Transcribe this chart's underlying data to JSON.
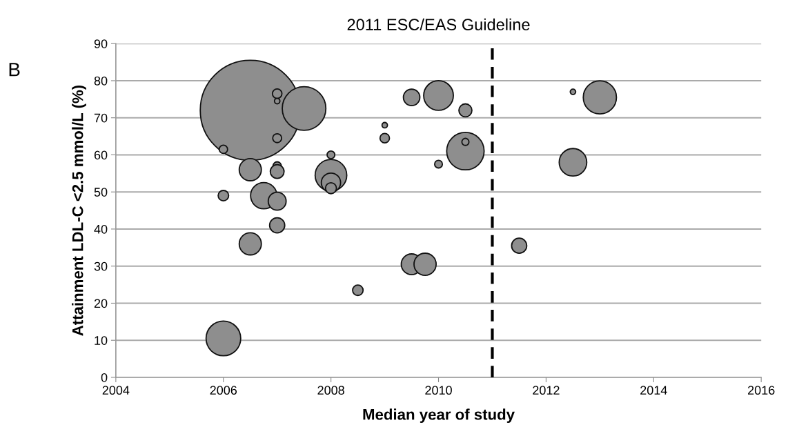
{
  "chart_data": {
    "type": "bubble",
    "title": "2011 ESC/EAS Guideline",
    "xlabel": "Median year of study",
    "ylabel": "Attainment LDL-C <2.5 mmol/L (%)",
    "annotations": [
      "B"
    ],
    "x": [
      2006.5,
      2007.5,
      2007,
      2007,
      2007,
      2006,
      2006.5,
      2007,
      2007,
      2008,
      2008,
      2008,
      2008,
      2006,
      2006.75,
      2007,
      2007,
      2006.5,
      2006,
      2008.5,
      2009,
      2009,
      2009.5,
      2010,
      2010.5,
      2010.5,
      2010.5,
      2010,
      2009.5,
      2009.75,
      2011.5,
      2012.5,
      2013,
      2012.5
    ],
    "values": [
      72,
      72.5,
      76.5,
      74.5,
      64.5,
      61.5,
      56,
      57,
      55.5,
      60,
      54.5,
      52.5,
      51,
      49,
      49,
      47.5,
      41,
      36,
      10.5,
      23.5,
      68,
      64.5,
      75.5,
      76,
      72,
      61,
      63.5,
      57.5,
      30.5,
      30.5,
      35.5,
      77,
      75.5,
      58
    ],
    "sizes": [
      1,
      0.19,
      0.009,
      0.003,
      0.008,
      0.007,
      0.049,
      0.007,
      0.019,
      0.006,
      0.1,
      0.037,
      0.012,
      0.011,
      0.069,
      0.032,
      0.023,
      0.049,
      0.12,
      0.011,
      0.003,
      0.009,
      0.027,
      0.088,
      0.017,
      0.14,
      0.005,
      0.006,
      0.043,
      0.049,
      0.023,
      0.003,
      0.11,
      0.076
    ],
    "color": "#8e8e8e",
    "marker": "circle",
    "xlim": [
      2004,
      2016
    ],
    "xticks": [
      2004,
      2006,
      2008,
      2010,
      2012,
      2014,
      2016
    ],
    "ylim": [
      0,
      90
    ],
    "yticks": [
      0,
      10,
      20,
      30,
      40,
      50,
      60,
      70,
      80,
      90
    ],
    "grid": "y",
    "ref_lines": [
      {
        "axis": "x",
        "value": 2011,
        "color": "#000000",
        "line_style": "dashed"
      }
    ]
  }
}
